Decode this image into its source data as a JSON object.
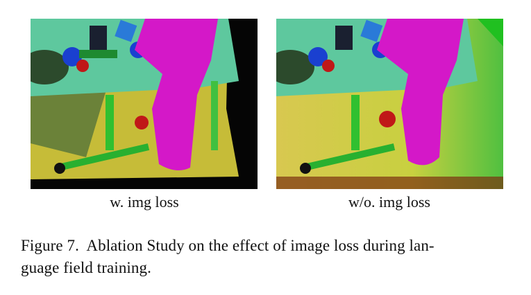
{
  "figure": {
    "panels": [
      {
        "label": "w. img loss"
      },
      {
        "label": "w/o. img loss"
      }
    ],
    "caption": {
      "lines": [
        "Figure 7.  Ablation Study on the effect of image loss during lan-",
        "guage field training."
      ]
    }
  }
}
